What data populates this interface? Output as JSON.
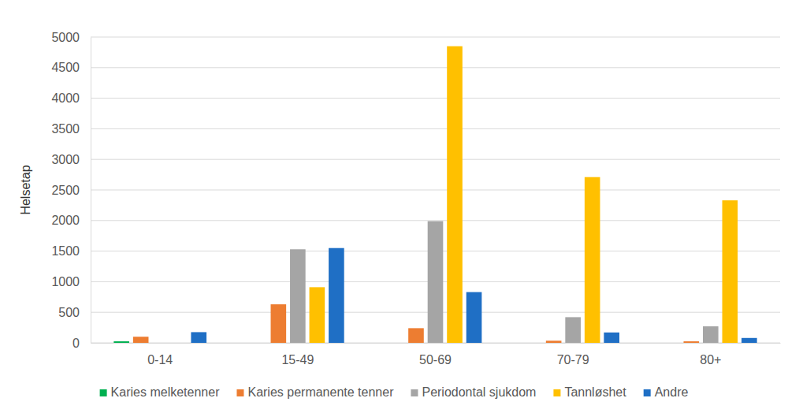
{
  "chart_data": {
    "type": "bar",
    "y_label": "Helsetap",
    "categories": [
      "0-14",
      "15-49",
      "50-69",
      "70-79",
      "80+"
    ],
    "series": [
      {
        "name": "Karies melketenner",
        "color": "#00b050",
        "values": [
          25,
          0,
          0,
          0,
          0
        ]
      },
      {
        "name": "Karies permanente tenner",
        "color": "#ed7d31",
        "values": [
          100,
          630,
          240,
          35,
          25
        ]
      },
      {
        "name": "Periodontal sjukdom",
        "color": "#a5a5a5",
        "values": [
          0,
          1530,
          1990,
          420,
          270
        ]
      },
      {
        "name": "Tannløshet",
        "color": "#ffc000",
        "values": [
          0,
          910,
          4850,
          2710,
          2330
        ]
      },
      {
        "name": "Andre",
        "color": "#1f6fc5",
        "values": [
          175,
          1550,
          830,
          170,
          80
        ]
      }
    ],
    "ylim": [
      0,
      5000
    ],
    "yticks": [
      0,
      500,
      1000,
      1500,
      2000,
      2500,
      3000,
      3500,
      4000,
      4500,
      5000
    ],
    "grid": true,
    "legend": "bottom"
  }
}
